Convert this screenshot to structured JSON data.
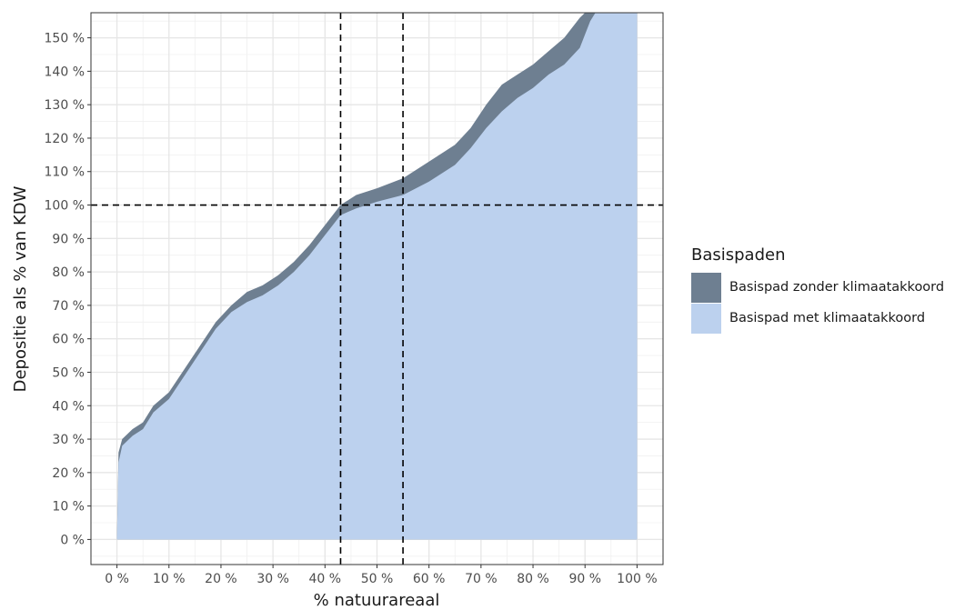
{
  "chart_data": {
    "type": "area",
    "xlabel": "% natuurareaal",
    "ylabel": "Depositie als % van KDW",
    "xlim": [
      -5,
      105
    ],
    "ylim": [
      -7.5,
      157.5
    ],
    "x_ticks": [
      0,
      10,
      20,
      30,
      40,
      50,
      60,
      70,
      80,
      90,
      100
    ],
    "x_tick_labels": [
      "0 %",
      "10 %",
      "20 %",
      "30 %",
      "40 %",
      "50 %",
      "60 %",
      "70 %",
      "80 %",
      "90 %",
      "100 %"
    ],
    "y_ticks": [
      0,
      10,
      20,
      30,
      40,
      50,
      60,
      70,
      80,
      90,
      100,
      110,
      120,
      130,
      140,
      150
    ],
    "y_tick_labels": [
      "0 %",
      "10 %",
      "20 %",
      "30 %",
      "40 %",
      "50 %",
      "60 %",
      "70 %",
      "80 %",
      "90 %",
      "100 %",
      "110 %",
      "120 %",
      "130 %",
      "140 %",
      "150 %"
    ],
    "grid": true,
    "legend_title": "Basispaden",
    "legend_position": "right",
    "reference_lines": {
      "horizontal": [
        100
      ],
      "vertical": [
        43,
        55
      ]
    },
    "series": [
      {
        "name": "Basispad zonder klimaatakkoord",
        "color": "#6e7f91",
        "x": [
          0,
          0.3,
          1,
          3,
          5,
          7,
          10,
          13,
          16,
          19,
          22,
          25,
          28,
          31,
          34,
          37,
          40,
          43,
          46,
          50,
          55,
          60,
          65,
          68,
          71,
          74,
          77,
          80,
          83,
          86,
          89,
          90,
          91,
          92,
          100
        ],
        "y": [
          0,
          26,
          30,
          33,
          35,
          40,
          44,
          51,
          58,
          65,
          70,
          74,
          76,
          79,
          83,
          88,
          94,
          100,
          103,
          105,
          108,
          113,
          118,
          123,
          130,
          136,
          139,
          142,
          146,
          150,
          156,
          158,
          158,
          158,
          158
        ]
      },
      {
        "name": "Basispad met klimaatakkoord",
        "color": "#bcd1ee",
        "x": [
          0,
          0.3,
          1,
          3,
          5,
          7,
          10,
          13,
          16,
          19,
          22,
          25,
          28,
          31,
          34,
          37,
          40,
          43,
          46,
          50,
          55,
          60,
          65,
          68,
          71,
          74,
          77,
          80,
          83,
          86,
          89,
          90,
          91,
          92,
          100
        ],
        "y": [
          0,
          23,
          28,
          31,
          33,
          38,
          42,
          49,
          56,
          63,
          68,
          71,
          73,
          76,
          80,
          85,
          91,
          97,
          99,
          101,
          103,
          107,
          112,
          117,
          123,
          128,
          132,
          135,
          139,
          142,
          147,
          151,
          155,
          158,
          158
        ]
      }
    ]
  }
}
